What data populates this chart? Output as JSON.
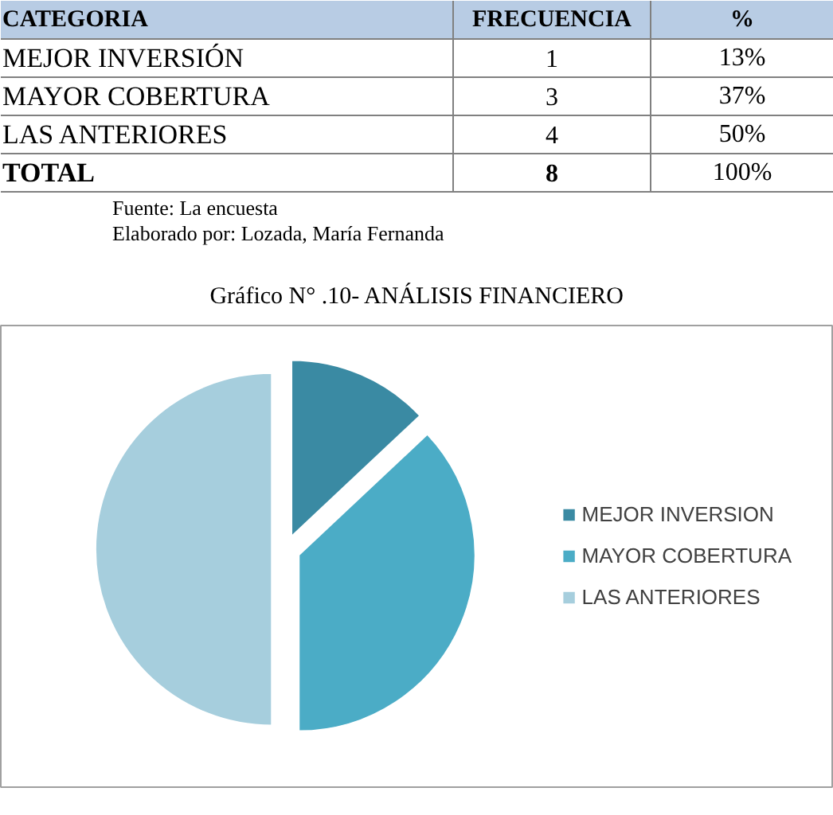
{
  "chart_data": [
    {
      "type": "other",
      "legend_title": "CATEGORIA",
      "categories": [
        "MEJOR INVERSIÓN",
        "MAYOR COBERTURA",
        "LAS ANTERIORES",
        "TOTAL"
      ],
      "series": [
        {
          "name": "FRECUENCIA",
          "values": [
            1,
            3,
            4,
            8
          ]
        },
        {
          "name": "%",
          "values": [
            13,
            37,
            50,
            100
          ],
          "value_labels": [
            "13%",
            "37%",
            "50%",
            "100%"
          ]
        }
      ],
      "data_labels": true,
      "annotations": [
        "Fuente: La encuesta",
        "Elaborado por: Lozada, María Fernanda"
      ]
    },
    {
      "type": "pie",
      "title": "Gráfico N° .10- ANÁLISIS FINANCIERO",
      "categories": [
        "MEJOR INVERSION",
        "MAYOR COBERTURA",
        "LAS ANTERIORES"
      ],
      "values": [
        13,
        37,
        50
      ],
      "colors": [
        "#3a8aa3",
        "#4bacc6",
        "#a6cedd"
      ],
      "legend": "right"
    }
  ]
}
